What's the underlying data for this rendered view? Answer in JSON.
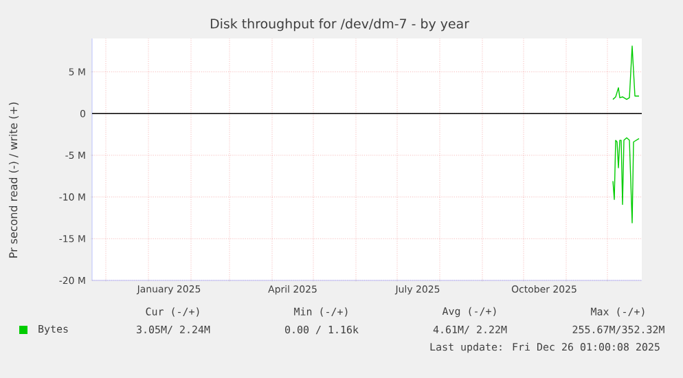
{
  "chart_data": {
    "type": "line",
    "title": "Disk throughput for /dev/dm-7 - by year",
    "ylabel": "Pr second read (-) / write (+)",
    "xlim": [
      "2024-11-21",
      "2025-12-26"
    ],
    "xticks": [
      {
        "value": "2024-12-01",
        "label": null
      },
      {
        "value": "2025-01-01",
        "label": null
      },
      {
        "value": "2025-01-16",
        "label": "January 2025"
      },
      {
        "value": "2025-02-01",
        "label": null
      },
      {
        "value": "2025-03-01",
        "label": null
      },
      {
        "value": "2025-04-01",
        "label": null
      },
      {
        "value": "2025-04-16",
        "label": "April 2025"
      },
      {
        "value": "2025-05-01",
        "label": null
      },
      {
        "value": "2025-06-01",
        "label": null
      },
      {
        "value": "2025-07-01",
        "label": null
      },
      {
        "value": "2025-07-16",
        "label": "July 2025"
      },
      {
        "value": "2025-08-01",
        "label": null
      },
      {
        "value": "2025-09-01",
        "label": null
      },
      {
        "value": "2025-10-01",
        "label": null
      },
      {
        "value": "2025-10-16",
        "label": "October 2025"
      },
      {
        "value": "2025-11-01",
        "label": null
      },
      {
        "value": "2025-12-01",
        "label": null
      }
    ],
    "ylim": [
      -20000000,
      9000000
    ],
    "yticks": [
      {
        "value": -20000000,
        "label": "-20 M"
      },
      {
        "value": -15000000,
        "label": "-15 M"
      },
      {
        "value": -10000000,
        "label": "-10 M"
      },
      {
        "value": -5000000,
        "label": "-5 M"
      },
      0,
      {
        "value": 5000000,
        "label": "5 M"
      }
    ],
    "grid": true,
    "legend": "bottom left",
    "marker": "none",
    "line_style": "solid",
    "ref_lines": [
      {
        "axis": "y",
        "value": 0,
        "color": "#000000"
      }
    ],
    "series": [
      {
        "name": "Bytes",
        "color": "#00cc00",
        "x": [
          "2025-12-05",
          "2025-12-07",
          "2025-12-09",
          "2025-12-10",
          "2025-12-12",
          "2025-12-15",
          "2025-12-17",
          "2025-12-19",
          "2025-12-21",
          "2025-12-24"
        ],
        "values": [
          1700000,
          2000000,
          3100000,
          1900000,
          2000000,
          1700000,
          1900000,
          8100000,
          2100000,
          2100000
        ]
      },
      {
        "color": "#00cc00",
        "x": [
          "2025-12-05",
          "2025-12-06",
          "2025-12-07",
          "2025-12-08",
          "2025-12-09",
          "2025-12-10",
          "2025-12-11",
          "2025-12-12",
          "2025-12-13",
          "2025-12-15",
          "2025-12-17",
          "2025-12-19",
          "2025-12-20",
          "2025-12-24"
        ],
        "values": [
          -8100000,
          -10300000,
          -3200000,
          -3400000,
          -6500000,
          -3200000,
          -3200000,
          -10900000,
          -3200000,
          -2900000,
          -3200000,
          -13100000,
          -3400000,
          -3000000
        ]
      }
    ],
    "annotations": [
      "Cur (-/+)",
      "Min (-/+)",
      "Avg (-/+)",
      "Max (-/+)",
      "3.05M/ 2.24M",
      "0.00 / 1.16k",
      "4.61M/ 2.22M",
      "255.67M/352.32M",
      "Last update: Fri Dec 26 01:00:08 2025"
    ]
  }
}
